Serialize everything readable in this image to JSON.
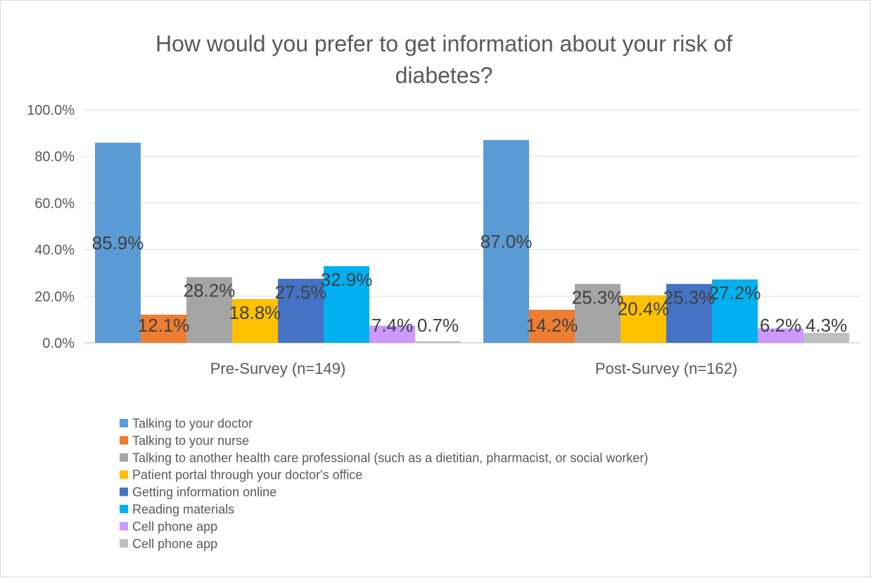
{
  "chart_data": {
    "type": "bar",
    "title": "How would you prefer to get information about your risk of diabetes?",
    "title_lines": [
      "How would you prefer to get information about your risk of",
      "diabetes?"
    ],
    "categories": [
      "Pre-Survey (n=149)",
      "Post-Survey (n=162)"
    ],
    "ylim": [
      0,
      100
    ],
    "yticks": [
      "0.0%",
      "20.0%",
      "40.0%",
      "60.0%",
      "80.0%",
      "100.0%"
    ],
    "grid": true,
    "legend_position": "bottom-left",
    "series": [
      {
        "name": "Talking to your doctor",
        "values": [
          85.9,
          87.0
        ],
        "labels": [
          "85.9%",
          "87.0%"
        ],
        "color": "#5B9BD5"
      },
      {
        "name": "Talking to your nurse",
        "values": [
          12.1,
          14.2
        ],
        "labels": [
          "12.1%",
          "14.2%"
        ],
        "color": "#ED7D31"
      },
      {
        "name": "Talking to another health care professional (such as a dietitian, pharmacist, or social worker)",
        "values": [
          28.2,
          25.3
        ],
        "labels": [
          "28.2%",
          "25.3%"
        ],
        "color": "#A5A5A5"
      },
      {
        "name": "Patient portal through your doctor's office",
        "values": [
          18.8,
          20.4
        ],
        "labels": [
          "18.8%",
          "20.4%"
        ],
        "color": "#FFC000"
      },
      {
        "name": "Getting information online",
        "values": [
          27.5,
          25.3
        ],
        "labels": [
          "27.5%",
          "25.3%"
        ],
        "color": "#4472C4"
      },
      {
        "name": "Reading materials",
        "values": [
          32.9,
          27.2
        ],
        "labels": [
          "32.9%",
          "27.2%"
        ],
        "color": "#00B0F0"
      },
      {
        "name": "Cell phone app",
        "values": [
          7.4,
          6.2
        ],
        "labels": [
          "7.4%",
          "6.2%"
        ],
        "color": "#CC99FF"
      },
      {
        "name": "Cell phone app",
        "values": [
          0.7,
          4.3
        ],
        "labels": [
          "0.7%",
          "4.3%"
        ],
        "color": "#BFBFBF"
      }
    ]
  }
}
